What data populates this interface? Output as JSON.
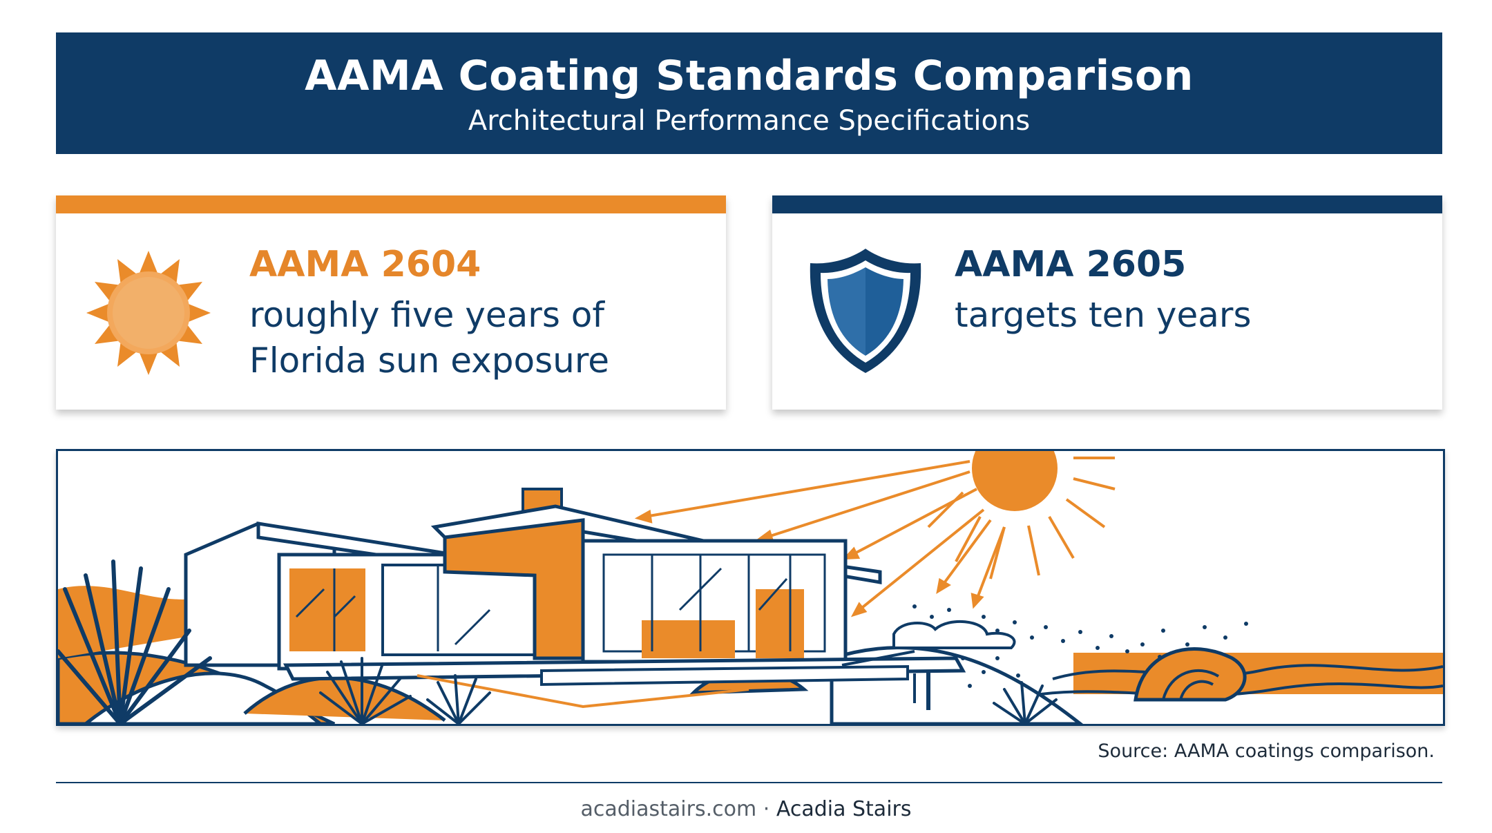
{
  "header": {
    "title": "AAMA Coating Standards Comparison",
    "subtitle": "Architectural Performance Specifications"
  },
  "cards": [
    {
      "name": "AAMA 2604",
      "description": "roughly five years of Florida sun exposure",
      "icon": "sun-icon",
      "accent": "#ea8b2a"
    },
    {
      "name": "AAMA 2605",
      "description": "targets ten years",
      "icon": "shield-icon",
      "accent": "#0f3b66"
    }
  ],
  "illustration": {
    "subject": "modern-coastal-house-under-sun",
    "colors": {
      "orange": "#ea8b2a",
      "navy": "#0f3b66"
    }
  },
  "source": "Source: AAMA coatings comparison.",
  "footer": {
    "site": "acadiastairs.com",
    "separator": " · ",
    "brand": "Acadia Stairs"
  }
}
